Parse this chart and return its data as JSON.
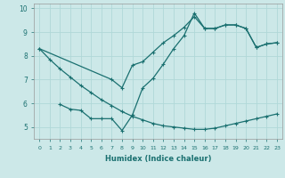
{
  "xlabel": "Humidex (Indice chaleur)",
  "xlim": [
    -0.5,
    23.5
  ],
  "ylim": [
    4.5,
    10.2
  ],
  "yticks": [
    5,
    6,
    7,
    8,
    9,
    10
  ],
  "xticks": [
    0,
    1,
    2,
    3,
    4,
    5,
    6,
    7,
    8,
    9,
    10,
    11,
    12,
    13,
    14,
    15,
    16,
    17,
    18,
    19,
    20,
    21,
    22,
    23
  ],
  "bg_color": "#cce8e8",
  "line_color": "#1a7070",
  "grid_color": "#b0d8d8",
  "line1_x": [
    0,
    1,
    2,
    3,
    4,
    5,
    6,
    7,
    8,
    9,
    10,
    11,
    12,
    13,
    14,
    15,
    16,
    17,
    18,
    19,
    20,
    21,
    22,
    23
  ],
  "line1_y": [
    8.3,
    7.85,
    7.45,
    7.1,
    6.75,
    6.45,
    6.15,
    5.9,
    5.65,
    5.45,
    5.3,
    5.15,
    5.05,
    5.0,
    4.95,
    4.9,
    4.9,
    4.95,
    5.05,
    5.15,
    5.25,
    5.35,
    5.45,
    5.55
  ],
  "line2_x": [
    2,
    3,
    4,
    5,
    6,
    7,
    8,
    9,
    10,
    11,
    12,
    13,
    14,
    15,
    16,
    17,
    18,
    19,
    20,
    21,
    22,
    23
  ],
  "line2_y": [
    5.95,
    5.75,
    5.7,
    5.35,
    5.35,
    5.35,
    4.85,
    5.5,
    6.65,
    7.05,
    7.65,
    8.3,
    8.85,
    9.8,
    9.15,
    9.15,
    9.3,
    9.3,
    9.15,
    8.35,
    8.5,
    8.55
  ],
  "line3_x": [
    0,
    7,
    8,
    9,
    10,
    11,
    12,
    13,
    14,
    15,
    16,
    17,
    18,
    19,
    20,
    21,
    22,
    23
  ],
  "line3_y": [
    8.3,
    7.0,
    6.65,
    7.6,
    7.75,
    8.15,
    8.55,
    8.85,
    9.2,
    9.65,
    9.15,
    9.15,
    9.3,
    9.3,
    9.15,
    8.35,
    8.5,
    8.55
  ]
}
